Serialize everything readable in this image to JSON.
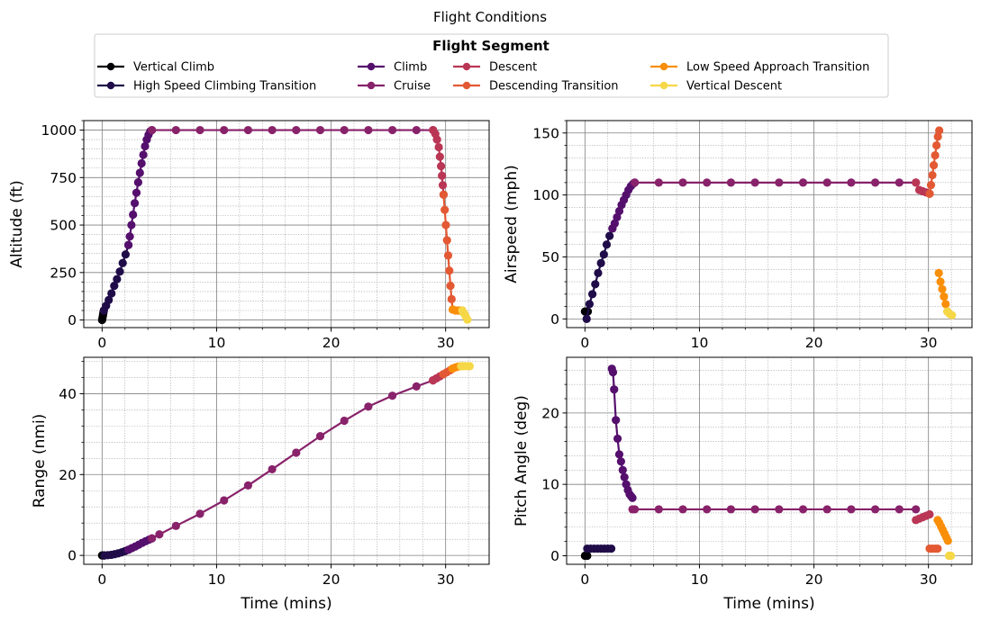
{
  "figure": {
    "title": "Flight Conditions",
    "legend_title": "Flight Segment",
    "legend_placement": "top-center, above subplots, 4 columns"
  },
  "segments": [
    {
      "name": "Vertical Climb",
      "color": "#000004"
    },
    {
      "name": "High Speed Climbing Transition",
      "color": "#1f0c48"
    },
    {
      "name": "Climb",
      "color": "#550f6d"
    },
    {
      "name": "Cruise",
      "color": "#88226a"
    },
    {
      "name": "Descent",
      "color": "#ba3655"
    },
    {
      "name": "Descending Transition",
      "color": "#e35933"
    },
    {
      "name": "Low Speed Approach Transition",
      "color": "#f98e09"
    },
    {
      "name": "Vertical Descent",
      "color": "#f6d746"
    }
  ],
  "chart_data": [
    {
      "type": "line",
      "subplot": "top-left",
      "title": "",
      "xlabel": "",
      "ylabel": "Altitude (ft)",
      "xlim": [
        -1.6,
        33.8
      ],
      "ylim": [
        -40,
        1050
      ],
      "xticks": [
        0,
        10,
        20,
        30
      ],
      "yticks": [
        0,
        250,
        500,
        750,
        1000
      ],
      "grid": "major and minor",
      "series": [
        {
          "name": "Vertical Climb",
          "x": [
            0.0,
            0.03,
            0.06,
            0.09,
            0.12,
            0.15
          ],
          "y": [
            0,
            10,
            20,
            30,
            40,
            50
          ]
        },
        {
          "name": "High Speed Climbing Transition",
          "x": [
            0.15,
            0.35,
            0.58,
            0.82,
            1.06,
            1.3,
            1.55,
            1.8,
            2.05,
            2.3
          ],
          "y": [
            50,
            75,
            105,
            140,
            180,
            215,
            255,
            300,
            345,
            395
          ]
        },
        {
          "name": "Climb",
          "x": [
            2.3,
            2.42,
            2.56,
            2.7,
            2.85,
            3.0,
            3.15,
            3.3,
            3.45,
            3.6,
            3.75,
            3.9,
            4.05,
            4.2,
            4.35
          ],
          "y": [
            395,
            440,
            500,
            555,
            615,
            670,
            725,
            775,
            825,
            870,
            915,
            950,
            975,
            993,
            1000
          ]
        },
        {
          "name": "Cruise",
          "x": [
            4.35,
            6.45,
            8.55,
            10.65,
            12.75,
            14.85,
            16.95,
            19.05,
            21.15,
            23.25,
            25.35,
            27.45,
            28.9
          ],
          "y": [
            1000,
            1000,
            1000,
            1000,
            1000,
            1000,
            1000,
            1000,
            1000,
            1000,
            1000,
            1000,
            1000
          ]
        },
        {
          "name": "Descent",
          "x": [
            28.9,
            29.1,
            29.25,
            29.4,
            29.5,
            29.6,
            29.68,
            29.75,
            29.82
          ],
          "y": [
            1000,
            980,
            950,
            910,
            860,
            810,
            760,
            710,
            660
          ]
        },
        {
          "name": "Descending Transition",
          "x": [
            29.82,
            29.92,
            30.02,
            30.12,
            30.22,
            30.32,
            30.42,
            30.52,
            30.62
          ],
          "y": [
            660,
            580,
            500,
            420,
            340,
            260,
            180,
            110,
            55
          ]
        },
        {
          "name": "Low Speed Approach Transition",
          "x": [
            30.62,
            30.85,
            31.05,
            31.25,
            31.45
          ],
          "y": [
            55,
            50,
            50,
            50,
            50
          ]
        },
        {
          "name": "Vertical Descent",
          "x": [
            31.45,
            31.6,
            31.75,
            31.9
          ],
          "y": [
            50,
            35,
            20,
            2
          ]
        }
      ]
    },
    {
      "type": "line",
      "subplot": "top-right",
      "title": "",
      "xlabel": "",
      "ylabel": "Airspeed (mph)",
      "xlim": [
        -1.6,
        33.8
      ],
      "ylim": [
        -7,
        160
      ],
      "xticks": [
        0,
        10,
        20,
        30
      ],
      "yticks": [
        0,
        50,
        100,
        150
      ],
      "grid": "major and minor",
      "series": [
        {
          "name": "Vertical Climb",
          "x": [
            0.0,
            0.12,
            0.25
          ],
          "y": [
            6,
            6,
            6
          ]
        },
        {
          "name": "High Speed Climbing Transition",
          "x": [
            0.15,
            0.4,
            0.65,
            0.9,
            1.15,
            1.4,
            1.65,
            1.9,
            2.15,
            2.4
          ],
          "y": [
            0,
            12,
            20,
            28,
            37,
            45,
            52,
            60,
            67,
            73
          ]
        },
        {
          "name": "Climb",
          "x": [
            2.4,
            2.6,
            2.8,
            3.0,
            3.2,
            3.4,
            3.6,
            3.8,
            4.0,
            4.2,
            4.35
          ],
          "y": [
            73,
            77,
            82,
            87,
            92,
            96,
            100,
            104,
            107,
            109,
            110
          ]
        },
        {
          "name": "Cruise",
          "x": [
            4.35,
            6.45,
            8.55,
            10.65,
            12.75,
            14.85,
            16.95,
            19.05,
            21.15,
            23.25,
            25.35,
            27.45,
            28.9
          ],
          "y": [
            110,
            110,
            110,
            110,
            110,
            110,
            110,
            110,
            110,
            110,
            110,
            110,
            110
          ]
        },
        {
          "name": "Descent",
          "x": [
            28.9,
            29.2,
            29.5,
            29.8,
            30.1
          ],
          "y": [
            110,
            104,
            103,
            102,
            101
          ]
        },
        {
          "name": "Descending Transition",
          "x": [
            30.1,
            30.22,
            30.34,
            30.46,
            30.58,
            30.7,
            30.82,
            30.94
          ],
          "y": [
            101,
            108,
            116,
            124,
            132,
            140,
            147,
            152
          ]
        },
        {
          "name": "Low Speed Approach Transition",
          "x": [
            30.9,
            31.05,
            31.2,
            31.35,
            31.5,
            31.65
          ],
          "y": [
            37,
            30,
            24,
            18,
            12,
            6
          ]
        },
        {
          "name": "Vertical Descent",
          "x": [
            31.65,
            31.85,
            32.05
          ],
          "y": [
            6,
            4,
            3
          ]
        }
      ]
    },
    {
      "type": "line",
      "subplot": "bottom-left",
      "title": "",
      "xlabel": "Time (mins)",
      "ylabel": "Range (nmi)",
      "xlim": [
        -1.6,
        33.8
      ],
      "ylim": [
        -2.2,
        49
      ],
      "xticks": [
        0,
        10,
        20,
        30
      ],
      "yticks": [
        0,
        20,
        40
      ],
      "grid": "major and minor",
      "series": [
        {
          "name": "Vertical Climb",
          "x": [
            0.0,
            0.1,
            0.2
          ],
          "y": [
            0,
            0,
            0
          ]
        },
        {
          "name": "High Speed Climbing Transition",
          "x": [
            0.2,
            0.5,
            0.8,
            1.1,
            1.4,
            1.7,
            2.0,
            2.3
          ],
          "y": [
            0,
            0.05,
            0.15,
            0.3,
            0.5,
            0.75,
            1.05,
            1.4
          ]
        },
        {
          "name": "Climb",
          "x": [
            2.3,
            2.6,
            2.9,
            3.2,
            3.5,
            3.8,
            4.1,
            4.35
          ],
          "y": [
            1.4,
            1.8,
            2.2,
            2.65,
            3.1,
            3.5,
            3.9,
            4.2
          ]
        },
        {
          "name": "Cruise",
          "x": [
            4.35,
            5.0,
            6.45,
            8.55,
            10.65,
            12.75,
            14.85,
            16.95,
            19.05,
            21.15,
            23.25,
            25.35,
            27.45,
            28.9
          ],
          "y": [
            4.2,
            5.2,
            7.3,
            10.3,
            13.6,
            17.3,
            21.3,
            25.4,
            29.5,
            33.3,
            36.8,
            39.5,
            41.8,
            43.3
          ]
        },
        {
          "name": "Descent",
          "x": [
            28.9,
            29.2,
            29.5,
            29.8
          ],
          "y": [
            43.3,
            43.8,
            44.3,
            44.8
          ]
        },
        {
          "name": "Descending Transition",
          "x": [
            29.8,
            30.1,
            30.4,
            30.6
          ],
          "y": [
            44.8,
            45.3,
            45.8,
            46.2
          ]
        },
        {
          "name": "Low Speed Approach Transition",
          "x": [
            30.6,
            30.85,
            31.1,
            31.35
          ],
          "y": [
            46.2,
            46.5,
            46.7,
            46.8
          ]
        },
        {
          "name": "Vertical Descent",
          "x": [
            31.35,
            31.6,
            31.85,
            32.1
          ],
          "y": [
            46.8,
            46.8,
            46.8,
            46.8
          ]
        }
      ]
    },
    {
      "type": "line",
      "subplot": "bottom-right",
      "title": "",
      "xlabel": "Time (mins)",
      "ylabel": "Pitch Angle (deg)",
      "xlim": [
        -1.6,
        33.8
      ],
      "ylim": [
        -1.2,
        27.8
      ],
      "xticks": [
        0,
        10,
        20,
        30
      ],
      "yticks": [
        0,
        10,
        20
      ],
      "grid": "major and minor",
      "series": [
        {
          "name": "Vertical Climb",
          "x": [
            0.0,
            0.1,
            0.2
          ],
          "y": [
            0,
            0,
            0
          ]
        },
        {
          "name": "High Speed Climbing Transition",
          "x": [
            0.2,
            0.5,
            0.8,
            1.1,
            1.4,
            1.7,
            2.0,
            2.3
          ],
          "y": [
            1,
            1,
            1,
            1,
            1,
            1,
            1,
            1
          ]
        },
        {
          "name": "Climb",
          "x": [
            2.35,
            2.45,
            2.55,
            2.7,
            2.85,
            3.0,
            3.15,
            3.3,
            3.45,
            3.6,
            3.75,
            3.9,
            4.05,
            4.15
          ],
          "y": [
            26.2,
            25.7,
            23.3,
            19,
            16.4,
            14.2,
            13.2,
            12,
            11,
            10,
            9.2,
            8.6,
            8.3,
            8.1
          ]
        },
        {
          "name": "Cruise",
          "x": [
            4.15,
            4.35,
            6.45,
            8.55,
            10.65,
            12.75,
            14.85,
            16.95,
            19.05,
            21.15,
            23.25,
            25.35,
            27.45,
            28.9
          ],
          "y": [
            6.5,
            6.5,
            6.5,
            6.5,
            6.5,
            6.5,
            6.5,
            6.5,
            6.5,
            6.5,
            6.5,
            6.5,
            6.5,
            6.5
          ]
        },
        {
          "name": "Descent",
          "x": [
            28.9,
            29.2,
            29.5,
            29.8,
            30.1
          ],
          "y": [
            5.0,
            5.2,
            5.4,
            5.6,
            5.8
          ]
        },
        {
          "name": "Descending Transition",
          "x": [
            30.1,
            30.35,
            30.6,
            30.8
          ],
          "y": [
            1,
            1,
            1,
            1
          ]
        },
        {
          "name": "Low Speed Approach Transition",
          "x": [
            30.8,
            30.95,
            31.1,
            31.25,
            31.4,
            31.55,
            31.7
          ],
          "y": [
            5,
            4.6,
            4.1,
            3.6,
            3.1,
            2.6,
            2.1
          ]
        },
        {
          "name": "Vertical Descent",
          "x": [
            31.8,
            31.95
          ],
          "y": [
            0,
            0
          ]
        }
      ]
    }
  ]
}
